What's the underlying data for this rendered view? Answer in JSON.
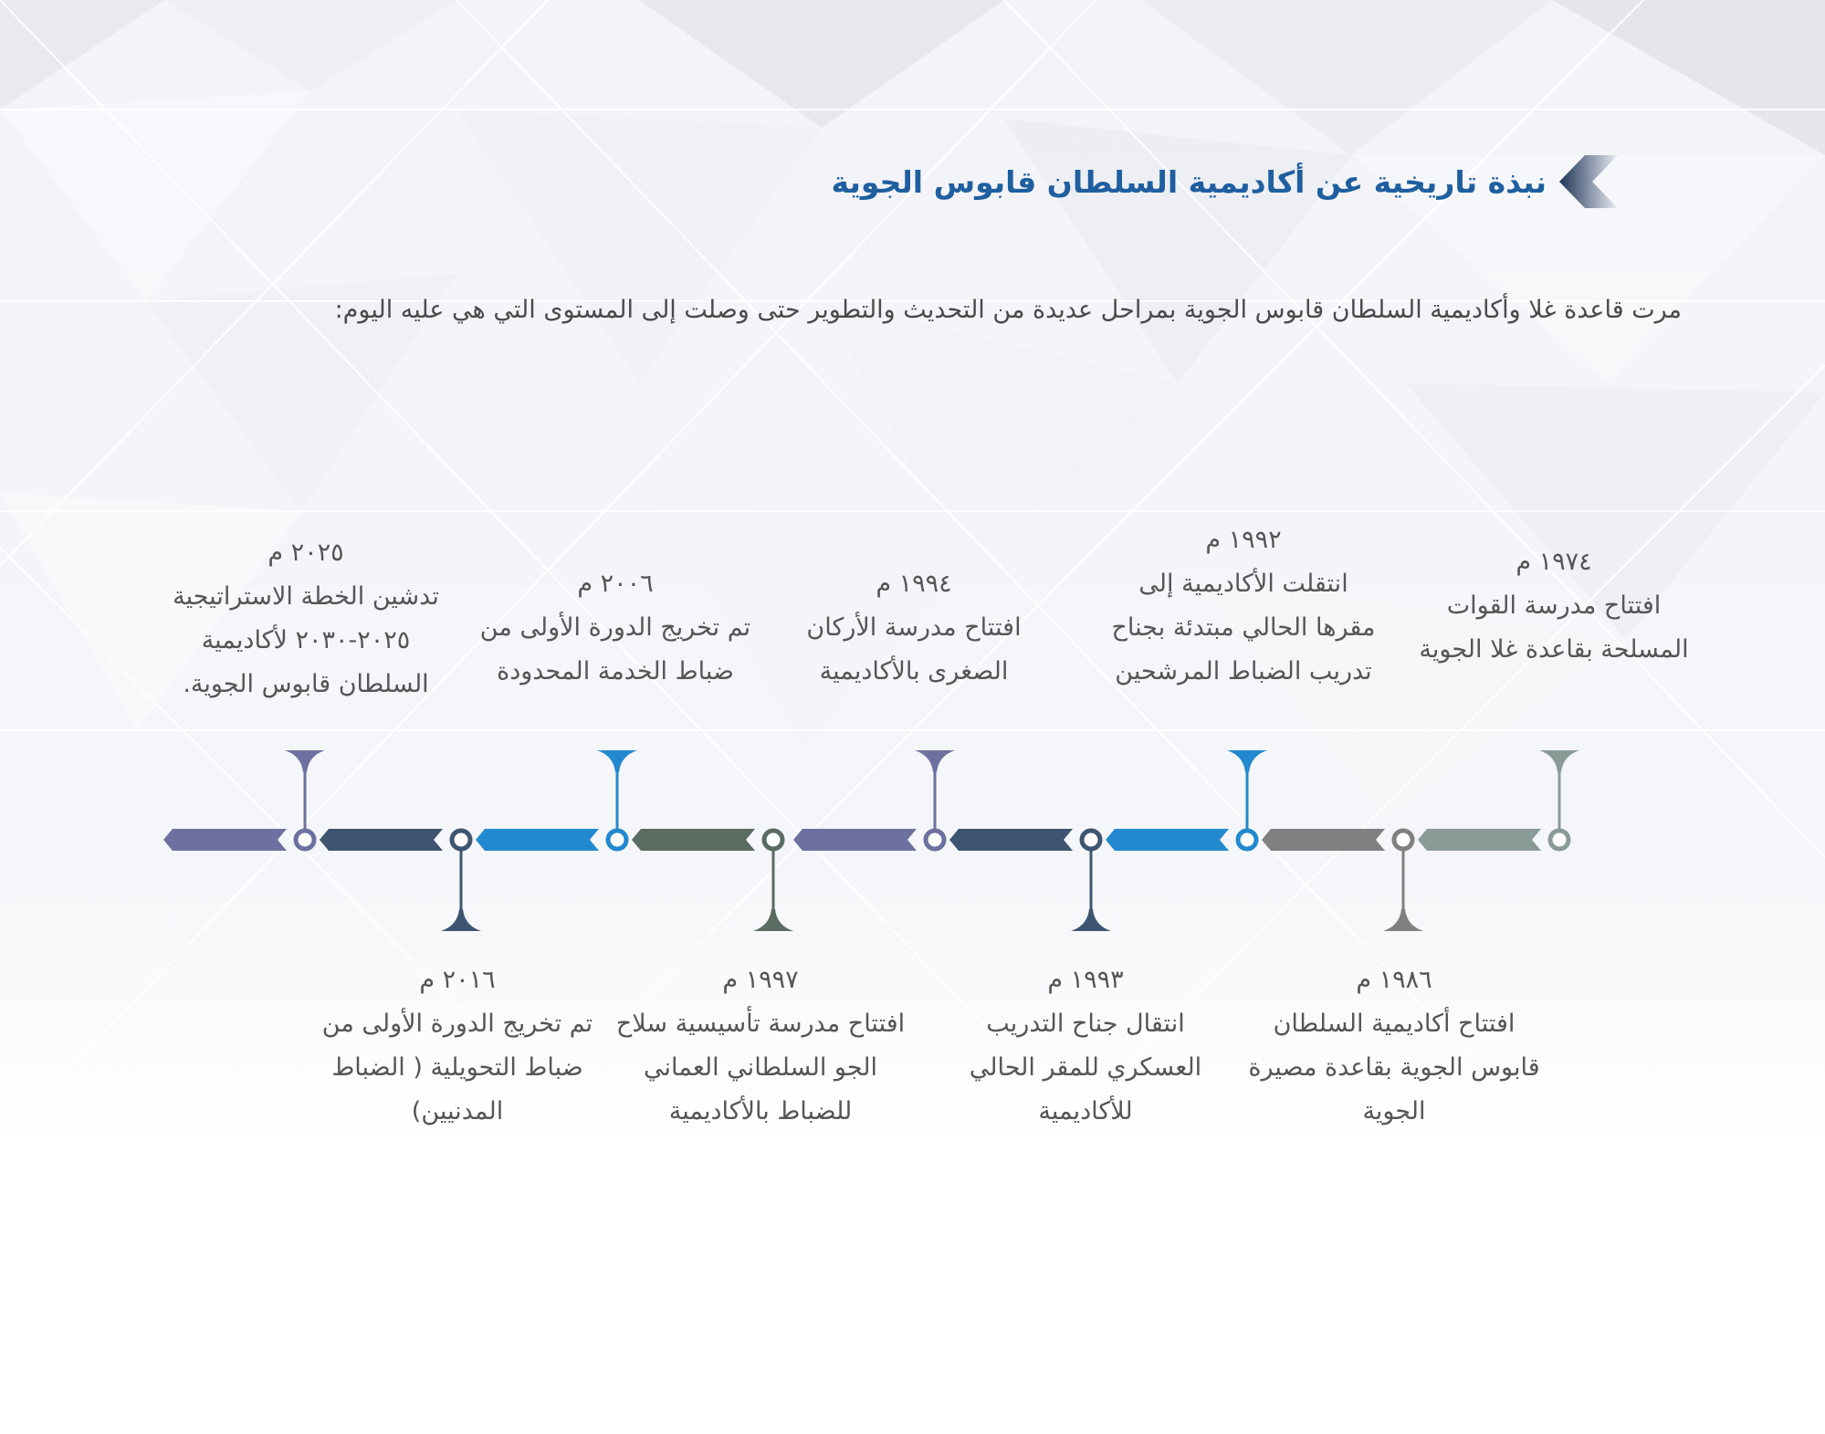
{
  "header": {
    "title": "نبذة تاريخية عن أكاديمية السلطان قابوس الجوية",
    "intro": "مرت قاعدة غلا وأكاديمية السلطان قابوس الجوية بمراحل عديدة من التحديث والتطوير حتى وصلت إلى المستوى التي هي عليه اليوم:"
  },
  "colors": {
    "title": "#1f5fa0",
    "text": "#555555",
    "segments": [
      "#8a9a96",
      "#808080",
      "#2289cf",
      "#3d5570",
      "#6e70a0",
      "#5a6b62",
      "#2289cf",
      "#3d5570",
      "#6e70a0"
    ]
  },
  "timeline": {
    "events": [
      {
        "year": "١٩٧٤ م",
        "text": "افتتاح مدرسة القوات المسلحة بقاعدة غلا الجوية",
        "position": "top"
      },
      {
        "year": "١٩٨٦ م",
        "text": "افتتاح أكاديمية السلطان قابوس الجوية بقاعدة مصيرة الجوية",
        "position": "bottom"
      },
      {
        "year": "١٩٩٢ م",
        "text": "انتقلت الأكاديمية إلى مقرها الحالي مبتدئة بجناح تدريب الضباط المرشحين",
        "position": "top"
      },
      {
        "year": "١٩٩٣ م",
        "text": "انتقال جناح التدريب العسكري للمقر الحالي للأكاديمية",
        "position": "bottom"
      },
      {
        "year": "١٩٩٤ م",
        "text": "افتتاح مدرسة الأركان الصغرى بالأكاديمية",
        "position": "top"
      },
      {
        "year": "١٩٩٧ م",
        "text": "افتتاح مدرسة تأسيسية سلاح الجو السلطاني العماني للضباط بالأكاديمية",
        "position": "bottom"
      },
      {
        "year": "٢٠٠٦ م",
        "text": "تم تخريج الدورة الأولى من ضباط الخدمة المحدودة",
        "position": "top"
      },
      {
        "year": "٢٠١٦ م",
        "text": "تم تخريج الدورة الأولى من ضباط التحويلية ( الضباط المدنيين)",
        "position": "bottom"
      },
      {
        "year": "٢٠٢٥ م",
        "text": "تدشين الخطة الاستراتيجية ٢٠٢٥-٢٠٣٠ لأكاديمية السلطان قابوس الجوية.",
        "position": "top"
      }
    ]
  }
}
